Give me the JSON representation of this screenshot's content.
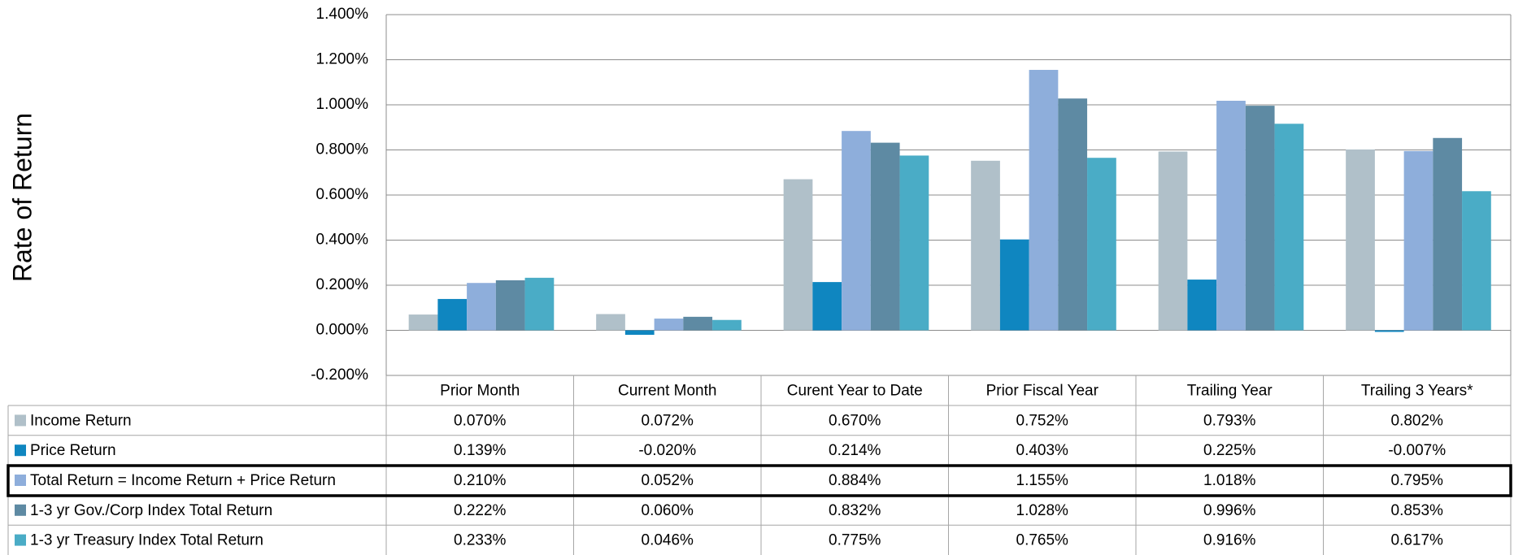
{
  "chart_data": {
    "type": "bar",
    "y_axis_label": "Rate of Return",
    "categories": [
      "Prior Month",
      "Current Month",
      "Curent Year to Date",
      "Prior Fiscal Year",
      "Trailing Year",
      "Trailing 3 Years*"
    ],
    "series": [
      {
        "name": "Income Return",
        "color": "#b0c0c9",
        "values": [
          0.07,
          0.072,
          0.67,
          0.752,
          0.793,
          0.802
        ],
        "value_labels": [
          "0.070%",
          "0.072%",
          "0.670%",
          "0.752%",
          "0.793%",
          "0.802%"
        ]
      },
      {
        "name": "Price Return",
        "color": "#0f86c0",
        "values": [
          0.139,
          -0.02,
          0.214,
          0.403,
          0.225,
          -0.007
        ],
        "value_labels": [
          "0.139%",
          "-0.020%",
          "0.214%",
          "0.403%",
          "0.225%",
          "-0.007%"
        ]
      },
      {
        "name": "Total Return = Income Return + Price Return",
        "color": "#8eaedb",
        "values": [
          0.21,
          0.052,
          0.884,
          1.155,
          1.018,
          0.795
        ],
        "value_labels": [
          "0.210%",
          "0.052%",
          "0.884%",
          "1.155%",
          "1.018%",
          "0.795%"
        ]
      },
      {
        "name": "1-3 yr Gov./Corp Index Total Return",
        "color": "#5e8aa3",
        "values": [
          0.222,
          0.06,
          0.832,
          1.028,
          0.996,
          0.853
        ],
        "value_labels": [
          "0.222%",
          "0.060%",
          "0.832%",
          "1.028%",
          "0.996%",
          "0.853%"
        ]
      },
      {
        "name": "1-3 yr Treasury Index Total Return",
        "color": "#4aacc6",
        "values": [
          0.233,
          0.046,
          0.775,
          0.765,
          0.916,
          0.617
        ],
        "value_labels": [
          "0.233%",
          "0.046%",
          "0.775%",
          "0.765%",
          "0.916%",
          "0.617%"
        ]
      }
    ],
    "ylim": [
      -0.2,
      1.4
    ],
    "yticks": [
      {
        "value": -0.2,
        "label": "-0.200%"
      },
      {
        "value": 0,
        "label": "0.000%"
      },
      {
        "value": 0.2,
        "label": "0.200%"
      },
      {
        "value": 0.4,
        "label": "0.400%"
      },
      {
        "value": 0.6,
        "label": "0.600%"
      },
      {
        "value": 0.8,
        "label": "0.800%"
      },
      {
        "value": 1.0,
        "label": "1.000%"
      },
      {
        "value": 1.2,
        "label": "1.200%"
      },
      {
        "value": 1.4,
        "label": "1.400%"
      }
    ],
    "grid": true
  }
}
